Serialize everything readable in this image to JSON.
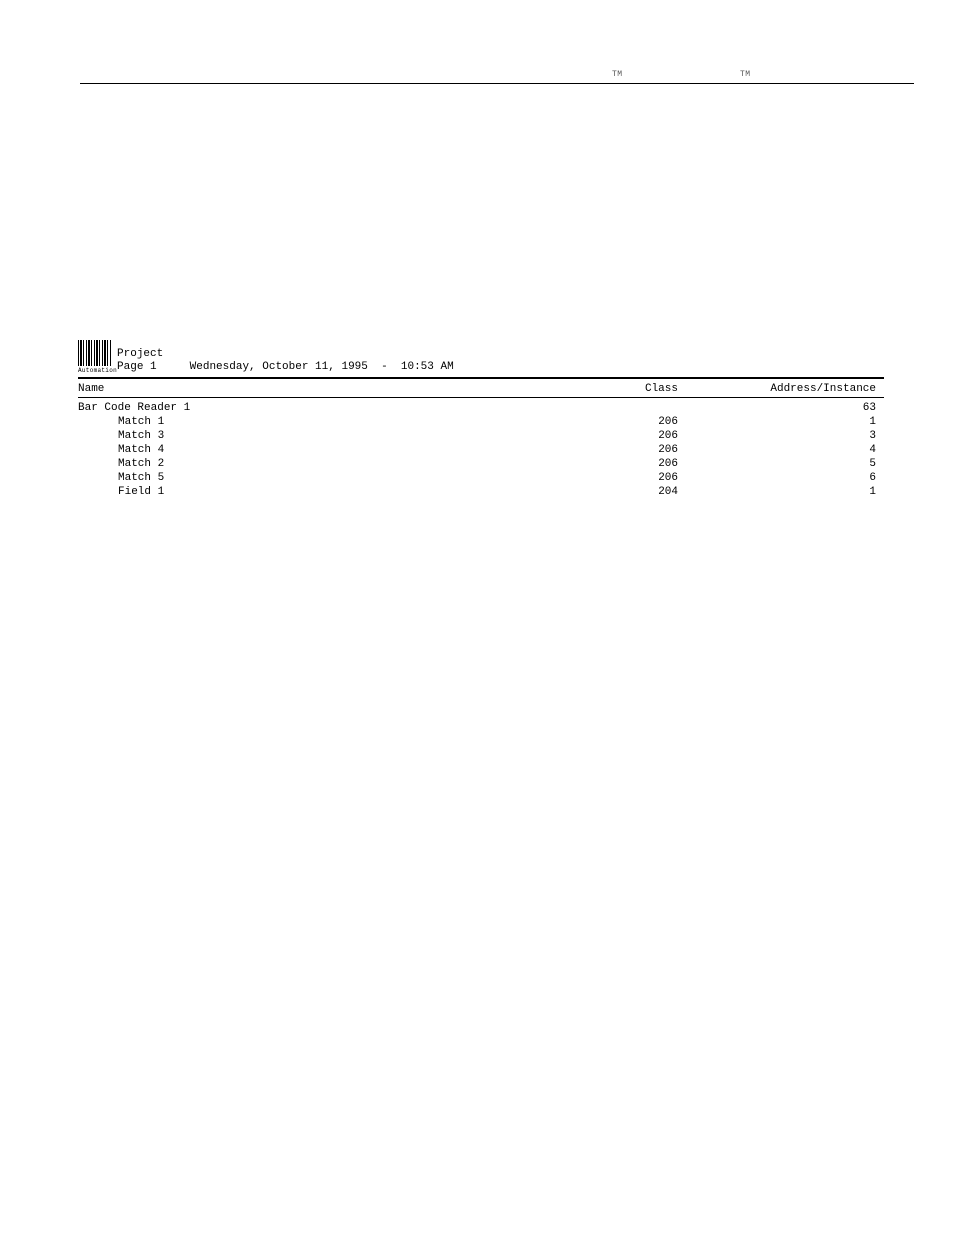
{
  "topmarks": {
    "tm1": "TM",
    "tm2": "TM"
  },
  "header": {
    "logo_label": "Automation",
    "title": "Project",
    "page_label": "Page 1",
    "datetime": "Wednesday, October 11, 1995  -  10:53 AM"
  },
  "columns": {
    "name": "Name",
    "class": "Class",
    "instance": "Address/Instance"
  },
  "rows": [
    {
      "name": "Bar Code Reader 1",
      "class": "",
      "instance": "63",
      "indent": false
    },
    {
      "name": "Match 1",
      "class": "206",
      "instance": "1",
      "indent": true
    },
    {
      "name": "Match 3",
      "class": "206",
      "instance": "3",
      "indent": true
    },
    {
      "name": "Match 4",
      "class": "206",
      "instance": "4",
      "indent": true
    },
    {
      "name": "Match 2",
      "class": "206",
      "instance": "5",
      "indent": true
    },
    {
      "name": "Match 5",
      "class": "206",
      "instance": "6",
      "indent": true
    },
    {
      "name": "Field 1",
      "class": "204",
      "instance": "1",
      "indent": true
    }
  ]
}
